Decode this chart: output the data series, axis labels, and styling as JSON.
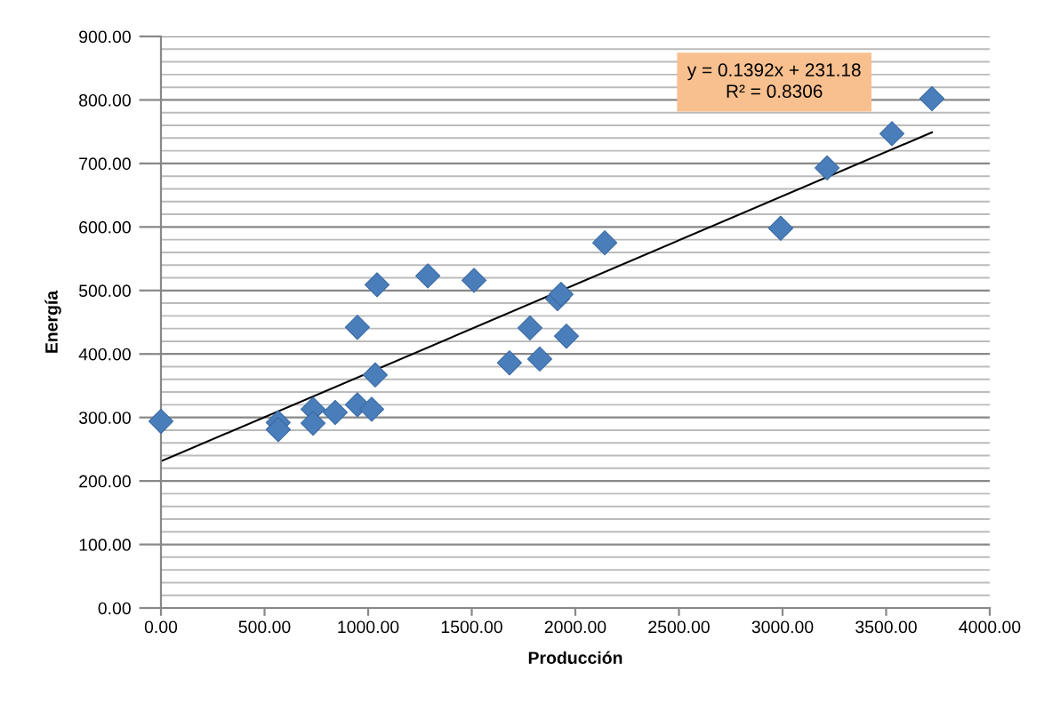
{
  "chart_data": {
    "type": "scatter",
    "xlabel": "Producción",
    "ylabel": "Energía",
    "annotations": [
      "y = 0.1392x + 231.18\nR² = 0.8306"
    ],
    "series": [
      {
        "color": "#4a7ebb",
        "marker": "diamond",
        "x": [
          0,
          566,
          566,
          734,
          734,
          841,
          948,
          948,
          1017,
          1034,
          1043,
          1288,
          1511,
          1682,
          1781,
          1828,
          1914,
          1931,
          1957,
          2142,
          2991,
          3215,
          3528,
          3721
        ],
        "values": [
          294,
          292,
          281,
          313,
          291,
          308,
          442,
          320,
          313,
          367,
          509,
          523,
          516,
          386,
          441,
          392,
          487,
          494,
          428,
          575,
          598,
          693,
          747,
          802
        ]
      },
      {
        "type": "line",
        "color": "#000000",
        "marker": "none",
        "line_style": "solid",
        "x": [
          0,
          3721
        ],
        "values": [
          231,
          749
        ]
      }
    ],
    "xlim": [
      0,
      4000
    ],
    "ylim": [
      0,
      900
    ],
    "xticks": [
      {
        "value": 0,
        "label": "0.00"
      },
      {
        "value": 500,
        "label": "500.00"
      },
      {
        "value": 1000,
        "label": "1000.00"
      },
      {
        "value": 1500,
        "label": "1500.00"
      },
      {
        "value": 2000,
        "label": "2000.00"
      },
      {
        "value": 2500,
        "label": "2500.00"
      },
      {
        "value": 3000,
        "label": "3000.00"
      },
      {
        "value": 3500,
        "label": "3500.00"
      },
      {
        "value": 4000,
        "label": "4000.00"
      }
    ],
    "yticks": [
      {
        "value": 0,
        "label": "0.00"
      },
      {
        "value": 20,
        "label": null
      },
      {
        "value": 40,
        "label": null
      },
      {
        "value": 60,
        "label": null
      },
      {
        "value": 80,
        "label": null
      },
      {
        "value": 100,
        "label": "100.00"
      },
      {
        "value": 120,
        "label": null
      },
      {
        "value": 140,
        "label": null
      },
      {
        "value": 160,
        "label": null
      },
      {
        "value": 180,
        "label": null
      },
      {
        "value": 200,
        "label": "200.00"
      },
      {
        "value": 220,
        "label": null
      },
      {
        "value": 240,
        "label": null
      },
      {
        "value": 260,
        "label": null
      },
      {
        "value": 280,
        "label": null
      },
      {
        "value": 300,
        "label": "300.00"
      },
      {
        "value": 320,
        "label": null
      },
      {
        "value": 340,
        "label": null
      },
      {
        "value": 360,
        "label": null
      },
      {
        "value": 380,
        "label": null
      },
      {
        "value": 400,
        "label": "400.00"
      },
      {
        "value": 420,
        "label": null
      },
      {
        "value": 440,
        "label": null
      },
      {
        "value": 460,
        "label": null
      },
      {
        "value": 480,
        "label": null
      },
      {
        "value": 500,
        "label": "500.00"
      },
      {
        "value": 520,
        "label": null
      },
      {
        "value": 540,
        "label": null
      },
      {
        "value": 560,
        "label": null
      },
      {
        "value": 580,
        "label": null
      },
      {
        "value": 600,
        "label": "600.00"
      },
      {
        "value": 620,
        "label": null
      },
      {
        "value": 640,
        "label": null
      },
      {
        "value": 660,
        "label": null
      },
      {
        "value": 680,
        "label": null
      },
      {
        "value": 700,
        "label": "700.00"
      },
      {
        "value": 720,
        "label": null
      },
      {
        "value": 740,
        "label": null
      },
      {
        "value": 760,
        "label": null
      },
      {
        "value": 780,
        "label": null
      },
      {
        "value": 800,
        "label": "800.00"
      },
      {
        "value": 820,
        "label": null
      },
      {
        "value": 840,
        "label": null
      },
      {
        "value": 860,
        "label": null
      },
      {
        "value": 880,
        "label": null
      },
      {
        "value": 900,
        "label": "900.00"
      }
    ],
    "grid": "y"
  }
}
